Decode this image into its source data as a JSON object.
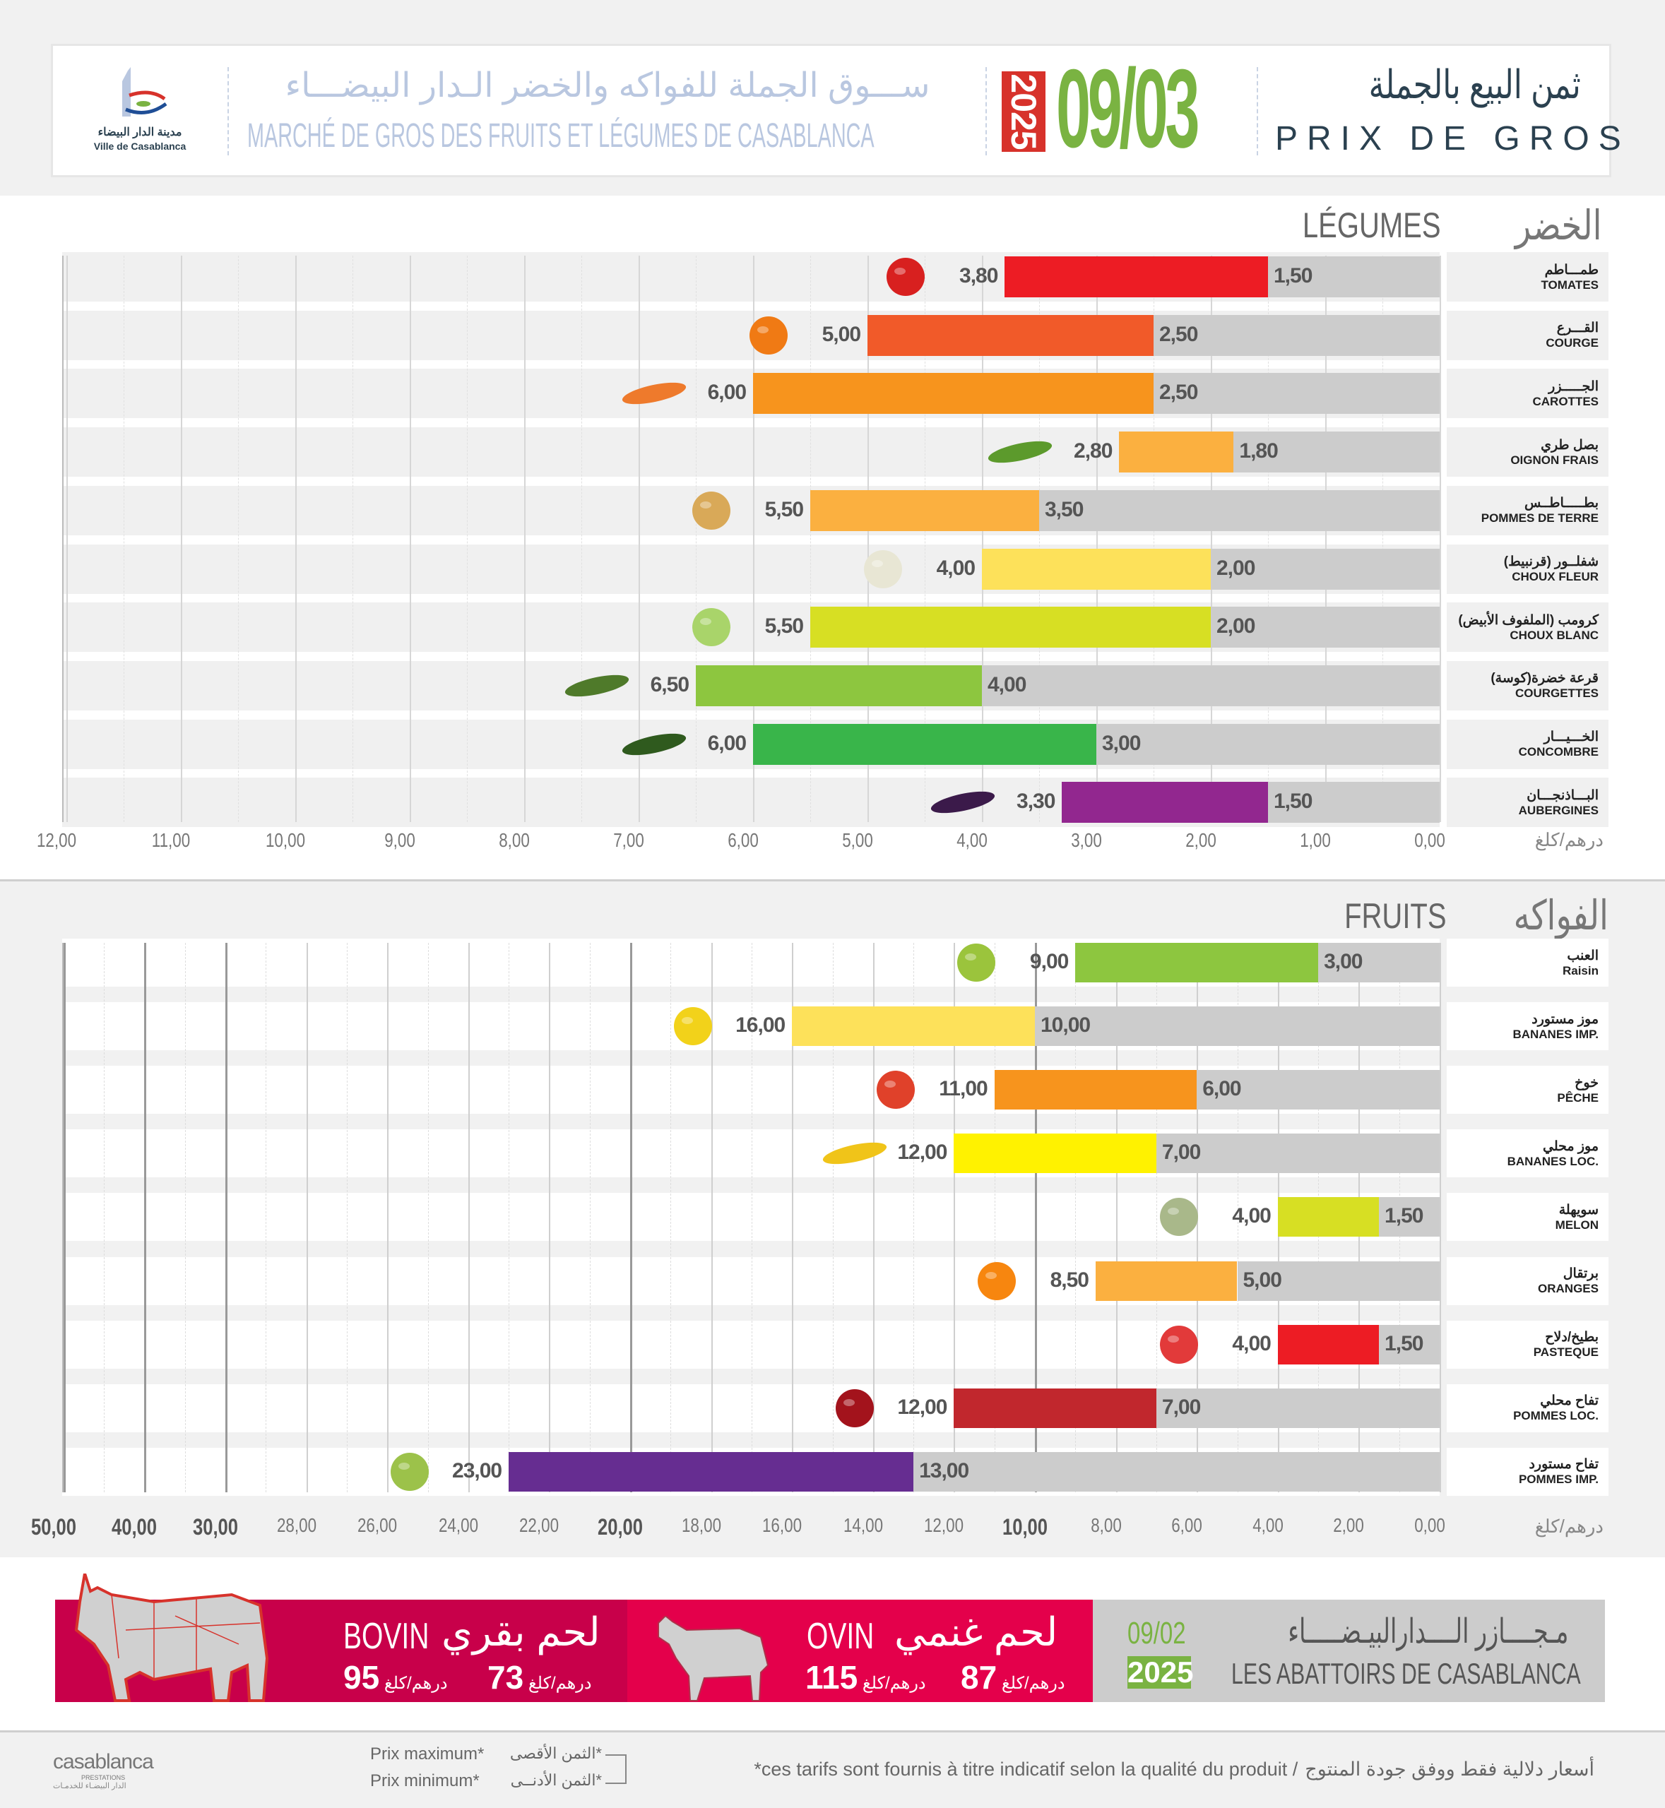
{
  "header": {
    "logo_ar": "مدينة الدار البيضاء",
    "logo_fr": "Ville de Casablanca",
    "title_ar": "ســـوق الجملة للفواكه والخضر الـدار البيضـــاء",
    "title_fr": "MARCHÉ DE GROS DES FRUITS ET LÉGUMES DE CASABLANCA",
    "year": "2025",
    "date": "09/03",
    "heading_ar": "ثمن البيع بالجملة",
    "heading_fr": "PRIX DE GROS"
  },
  "colors": {
    "green": "#7ab342",
    "red": "#d7322b",
    "bovin": "#c8004a",
    "ovin": "#e4004b",
    "navy": "#2b4150"
  },
  "chart_data": [
    {
      "type": "bar",
      "orientation": "horizontal-reversed",
      "title_fr": "LÉGUMES",
      "title_ar": "الخضر",
      "unit": "درهم/كلغ",
      "xlim": [
        0,
        12
      ],
      "ticks": [
        {
          "value": 12,
          "label": "12,00"
        },
        {
          "value": 11,
          "label": "11,00"
        },
        {
          "value": 10,
          "label": "10,00"
        },
        {
          "value": 9,
          "label": "9,00"
        },
        {
          "value": 8,
          "label": "8,00"
        },
        {
          "value": 7,
          "label": "7,00"
        },
        {
          "value": 6,
          "label": "6,00"
        },
        {
          "value": 5,
          "label": "5,00"
        },
        {
          "value": 4,
          "label": "4,00"
        },
        {
          "value": 3,
          "label": "3,00"
        },
        {
          "value": 2,
          "label": "2,00"
        },
        {
          "value": 1,
          "label": "1,00"
        },
        {
          "value": 0,
          "label": "0,00"
        }
      ],
      "series_names": [
        "Prix maximum",
        "Prix minimum"
      ],
      "items": [
        {
          "ar": "طمـــاطم",
          "fr": "TOMATES",
          "max": 3.8,
          "min": 1.5,
          "max_label": "3,80",
          "min_label": "1,50",
          "color": "#ed1c24",
          "icon": "tomato",
          "icon_color": "#d8201f"
        },
        {
          "ar": "القـــرع",
          "fr": "COURGE",
          "max": 5.0,
          "min": 2.5,
          "max_label": "5,00",
          "min_label": "2,50",
          "color": "#f15a29",
          "icon": "pumpkin",
          "icon_color": "#f07a14"
        },
        {
          "ar": "الجـــــزر",
          "fr": "CAROTTES",
          "max": 6.0,
          "min": 2.5,
          "max_label": "6,00",
          "min_label": "2,50",
          "color": "#f7941d",
          "icon": "carrot",
          "icon_color": "#ee7a2c"
        },
        {
          "ar": "بصل طري",
          "fr": "OIGNON FRAIS",
          "max": 2.8,
          "min": 1.8,
          "max_label": "2,80",
          "min_label": "1,80",
          "color": "#fbb040",
          "icon": "spring-onion",
          "icon_color": "#5c9a2c"
        },
        {
          "ar": "بطـــــاطــس",
          "fr": "POMMES DE TERRE",
          "max": 5.5,
          "min": 3.5,
          "max_label": "5,50",
          "min_label": "3,50",
          "color": "#fbb040",
          "icon": "potato",
          "icon_color": "#d9a958"
        },
        {
          "ar": "شفلــور (قرنبيط)",
          "fr": "CHOUX FLEUR",
          "max": 4.0,
          "min": 2.0,
          "max_label": "4,00",
          "min_label": "2,00",
          "color": "#fde15a",
          "icon": "cauliflower",
          "icon_color": "#e8e6d4"
        },
        {
          "ar": "كرومب (الملفوف الأبيض)",
          "fr": "CHOUX BLANC",
          "max": 5.5,
          "min": 2.0,
          "max_label": "5,50",
          "min_label": "2,00",
          "color": "#d7df23",
          "icon": "cabbage",
          "icon_color": "#a9d46a"
        },
        {
          "ar": "قرعة خضرة(كوسة)",
          "fr": "COURGETTES",
          "max": 6.5,
          "min": 4.0,
          "max_label": "6,50",
          "min_label": "4,00",
          "color": "#8dc63f",
          "icon": "zucchini",
          "icon_color": "#4f7a2a"
        },
        {
          "ar": "الخـــيـــار",
          "fr": "CONCOMBRE",
          "max": 6.0,
          "min": 3.0,
          "max_label": "6,00",
          "min_label": "3,00",
          "color": "#39b54a",
          "icon": "cucumber",
          "icon_color": "#2f5a1e"
        },
        {
          "ar": "البـــاذنجـــان",
          "fr": "AUBERGINES",
          "max": 3.3,
          "min": 1.5,
          "max_label": "3,30",
          "min_label": "1,50",
          "color": "#92278f",
          "icon": "eggplant",
          "icon_color": "#3b1a4a"
        }
      ]
    },
    {
      "type": "bar",
      "orientation": "horizontal-reversed",
      "title_fr": "FRUITS",
      "title_ar": "الفواكه",
      "unit": "درهم/كلغ",
      "xlim": [
        0,
        50
      ],
      "scale_note": "linear 0-30, compressed 30-50",
      "ticks": [
        {
          "value": 50,
          "label": "50,00",
          "bold": true
        },
        {
          "value": 40,
          "label": "40,00",
          "bold": true
        },
        {
          "value": 30,
          "label": "30,00",
          "bold": true
        },
        {
          "value": 28,
          "label": "28,00"
        },
        {
          "value": 26,
          "label": "26,00"
        },
        {
          "value": 24,
          "label": "24,00"
        },
        {
          "value": 22,
          "label": "22,00"
        },
        {
          "value": 20,
          "label": "20,00",
          "bold": true
        },
        {
          "value": 18,
          "label": "18,00"
        },
        {
          "value": 16,
          "label": "16,00"
        },
        {
          "value": 14,
          "label": "14,00"
        },
        {
          "value": 12,
          "label": "12,00"
        },
        {
          "value": 10,
          "label": "10,00",
          "bold": true
        },
        {
          "value": 8,
          "label": "8,00"
        },
        {
          "value": 6,
          "label": "6,00"
        },
        {
          "value": 4,
          "label": "4,00"
        },
        {
          "value": 2,
          "label": "2,00"
        },
        {
          "value": 0,
          "label": "0,00"
        }
      ],
      "series_names": [
        "Prix maximum",
        "Prix minimum"
      ],
      "items": [
        {
          "ar": "العنب",
          "fr": "Raisin",
          "max": 9.0,
          "min": 3.0,
          "max_label": "9,00",
          "min_label": "3,00",
          "color": "#8dc63f",
          "icon": "grapes",
          "icon_color": "#9bc43c"
        },
        {
          "ar": "موز مستورد",
          "fr": "BANANES IMP.",
          "max": 16.0,
          "min": 10.0,
          "max_label": "16,00",
          "min_label": "10,00",
          "color": "#fde15a",
          "icon": "bananas",
          "icon_color": "#f2d21a"
        },
        {
          "ar": "خوخ",
          "fr": "PÊCHE",
          "max": 11.0,
          "min": 6.0,
          "max_label": "11,00",
          "min_label": "6,00",
          "color": "#f7941d",
          "icon": "peach",
          "icon_color": "#e0412a"
        },
        {
          "ar": "موز محلي",
          "fr": "BANANES LOC.",
          "max": 12.0,
          "min": 7.0,
          "max_label": "12,00",
          "min_label": "7,00",
          "color": "#fff200",
          "icon": "banana",
          "icon_color": "#f0c419"
        },
        {
          "ar": "سويهلة",
          "fr": "MELON",
          "max": 4.0,
          "min": 1.5,
          "max_label": "4,00",
          "min_label": "1,50",
          "color": "#d7df23",
          "icon": "melon",
          "icon_color": "#a9b88a"
        },
        {
          "ar": "برتقال",
          "fr": "ORANGES",
          "max": 8.5,
          "min": 5.0,
          "max_label": "8,50",
          "min_label": "5,00",
          "color": "#fbb040",
          "icon": "orange",
          "icon_color": "#f7860f"
        },
        {
          "ar": "بطيخ/دلاح",
          "fr": "PASTEQUE",
          "max": 4.0,
          "min": 1.5,
          "max_label": "4,00",
          "min_label": "1,50",
          "color": "#ed1c24",
          "icon": "watermelon",
          "icon_color": "#e23a3a"
        },
        {
          "ar": "تفاح محلي",
          "fr": "POMMES LOC.",
          "max": 12.0,
          "min": 7.0,
          "max_label": "12,00",
          "min_label": "7,00",
          "color": "#c1272d",
          "icon": "apple",
          "icon_color": "#a3131c"
        },
        {
          "ar": "تفاح مستورد",
          "fr": "POMMES IMP.",
          "max": 23.0,
          "min": 13.0,
          "max_label": "23,00",
          "min_label": "13,00",
          "color": "#662d91",
          "icon": "apples",
          "icon_color": "#9cc24a"
        }
      ]
    }
  ],
  "meat": {
    "bovin": {
      "fr": "BOVIN",
      "ar": "لحم بقري",
      "price_max": "95",
      "price_min": "73",
      "unit": "درهم/كلغ"
    },
    "ovin": {
      "fr": "OVIN",
      "ar": "لحم غنمي",
      "price_max": "115",
      "price_min": "87",
      "unit": "درهم/كلغ"
    },
    "abattoirs": {
      "date": "09/02",
      "year": "2025",
      "ar": "مـجــــازر الــــدارالبيـضـــــاء",
      "fr": "LES ABATTOIRS DE CASABLANCA"
    }
  },
  "footer": {
    "logo": "casablanca",
    "logo_sub": "PRESTATIONS",
    "logo_ar": "الدار البيضـاء للخدمـات",
    "legend_max_fr": "Prix maximum*",
    "legend_min_fr": "Prix minimum*",
    "legend_max_ar": "*الثمن الأقصى",
    "legend_min_ar": "*الثمن الأدنــى",
    "disclaimer_fr": "*ces tarifs sont fournis à titre indicatif selon la qualité du produit  /",
    "disclaimer_ar": "أسعار دلالية فقط ووفق جودة المنتوج"
  }
}
